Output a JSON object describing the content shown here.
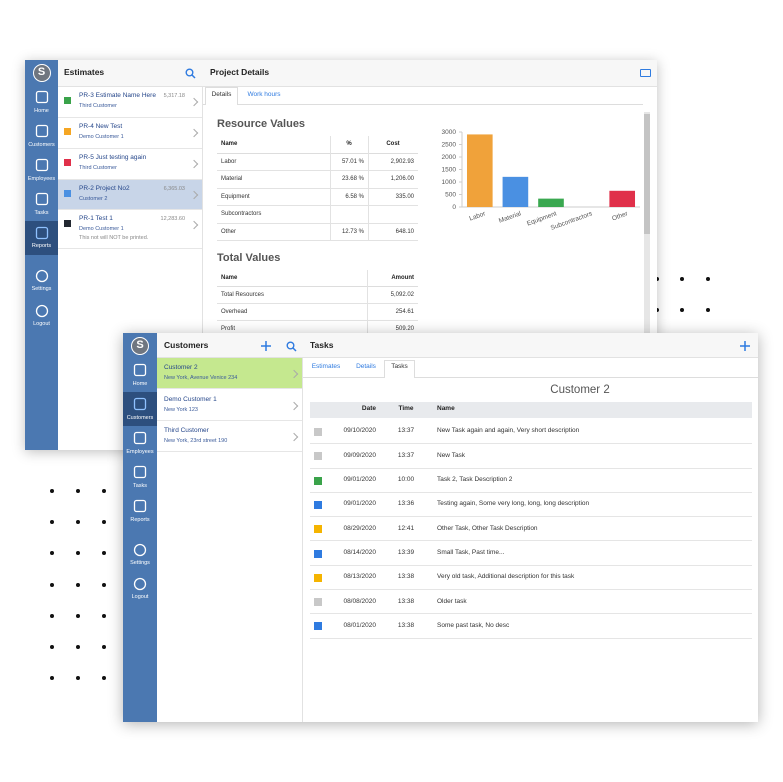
{
  "back_window": {
    "logo": "S",
    "nav": [
      {
        "label": "Home"
      },
      {
        "label": "Customers"
      },
      {
        "label": "Employees"
      },
      {
        "label": "Tasks"
      },
      {
        "label": "Reports",
        "active": true
      },
      {
        "label": "Settings"
      },
      {
        "label": "Logout"
      }
    ],
    "list_title": "Estimates",
    "estimates": [
      {
        "title": "PR-3 Estimate Name Here",
        "amount": "5,317.18",
        "subtitle": "Third Customer",
        "color": "#3aa34a"
      },
      {
        "title": "PR-4 New Test",
        "subtitle": "Demo Customer 1",
        "color": "#f5a623"
      },
      {
        "title": "PR-5 Just testing again",
        "subtitle": "Third Customer",
        "color": "#e0304a"
      },
      {
        "title": "PR-2 Project No2",
        "amount": "6,365.03",
        "subtitle": "Customer 2",
        "color": "#4a90e2",
        "selected": true
      },
      {
        "title": "PR-1 Test 1",
        "amount": "12,283.60",
        "subtitle": "Demo Customer 1",
        "note": "This not will NOT be printed.",
        "color": "#222831"
      }
    ],
    "detail_title": "Project Details",
    "tabs": [
      {
        "label": "Details",
        "active": true
      },
      {
        "label": "Work hours"
      }
    ],
    "resource_title": "Resource Values",
    "resource_table": {
      "headers": [
        "Name",
        "%",
        "Cost"
      ],
      "rows": [
        [
          "Labor",
          "57.01 %",
          "2,902.93"
        ],
        [
          "Material",
          "23.68 %",
          "1,206.00"
        ],
        [
          "Equipment",
          "6.58 %",
          "335.00"
        ],
        [
          "Subcontractors"
        ],
        [
          "Other",
          "12.73 %",
          "648.10"
        ]
      ]
    },
    "resource_chart": {
      "type": "bar",
      "categories": [
        "Labor",
        "Material",
        "Equipment",
        "Subcontractors",
        "Other"
      ],
      "values": [
        2902.93,
        1206,
        335,
        0,
        648.1
      ],
      "colors": [
        "#f0a23a",
        "#4a90e2",
        "#3aa850",
        "#9b59b6",
        "#e0304a"
      ],
      "ylim": [
        0,
        3000
      ],
      "yticks": [
        0,
        500,
        1000,
        1500,
        2000,
        2500,
        3000
      ],
      "grid": false
    },
    "total_title": "Total Values",
    "total_table": {
      "headers": [
        "Name",
        "Amount"
      ],
      "rows": [
        [
          "Total Resources",
          "5,092.02"
        ],
        [
          "Overhead",
          "254.61"
        ],
        [
          "Profit",
          "509.20"
        ]
      ]
    }
  },
  "front_window": {
    "logo": "S",
    "nav": [
      {
        "label": "Home"
      },
      {
        "label": "Customers",
        "active": true
      },
      {
        "label": "Employees"
      },
      {
        "label": "Tasks"
      },
      {
        "label": "Reports"
      },
      {
        "label": "Settings"
      },
      {
        "label": "Logout"
      }
    ],
    "list_title": "Customers",
    "customers": [
      {
        "name": "Customer 2",
        "address": "New York, Avenue Venice 234",
        "selected": true
      },
      {
        "name": "Demo Customer 1",
        "address": "New York 123"
      },
      {
        "name": "Third Customer",
        "address": "New York, 23rd street 190"
      }
    ],
    "detail_title": "Tasks",
    "tabs": [
      {
        "label": "Estimates"
      },
      {
        "label": "Details"
      },
      {
        "label": "Tasks",
        "active": true
      }
    ],
    "customer_title": "Customer 2",
    "task_table": {
      "headers": [
        "Date",
        "Time",
        "Name"
      ],
      "rows": [
        {
          "color": "#c8c8c8",
          "date": "09/10/2020",
          "time": "13:37",
          "name": "New Task again and again, Very short description"
        },
        {
          "color": "#c8c8c8",
          "date": "09/09/2020",
          "time": "13:37",
          "name": "New Task"
        },
        {
          "color": "#3aa34a",
          "date": "09/01/2020",
          "time": "10:00",
          "name": "Task 2, Task Description 2"
        },
        {
          "color": "#2f7be0",
          "date": "09/01/2020",
          "time": "13:36",
          "name": "Testing again, Some very long, long, long description"
        },
        {
          "color": "#f5b400",
          "date": "08/29/2020",
          "time": "12:41",
          "name": "Other Task, Other Task Description"
        },
        {
          "color": "#2f7be0",
          "date": "08/14/2020",
          "time": "13:39",
          "name": "Small Task, Past time..."
        },
        {
          "color": "#f5b400",
          "date": "08/13/2020",
          "time": "13:38",
          "name": "Very old task, Additional description for this task"
        },
        {
          "color": "#c8c8c8",
          "date": "08/08/2020",
          "time": "13:38",
          "name": "Older task"
        },
        {
          "color": "#2f7be0",
          "date": "08/01/2020",
          "time": "13:38",
          "name": "Some past task, No desc"
        }
      ]
    }
  }
}
